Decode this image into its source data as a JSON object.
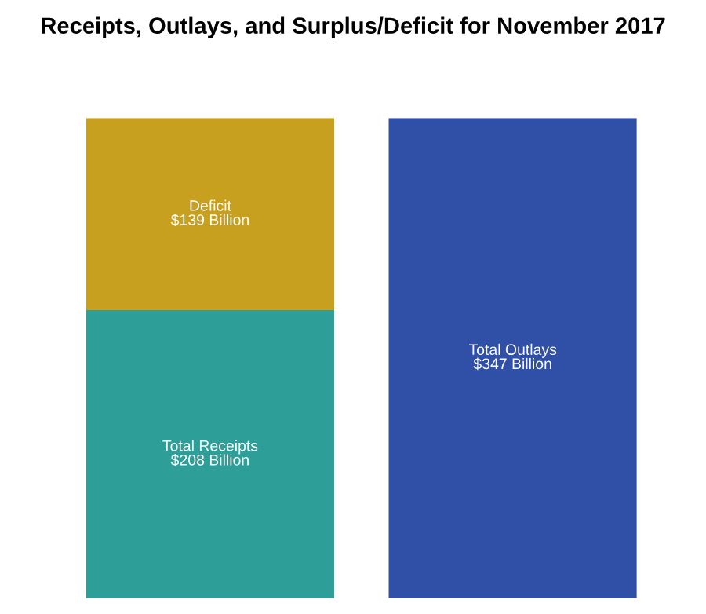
{
  "chart_data": {
    "type": "bar",
    "title": "Receipts, Outlays, and Surplus/Deficit for November 2017",
    "categories": [
      null,
      null
    ],
    "stacked": true,
    "legend": false,
    "series": [
      {
        "name": "Total Receipts",
        "color": "#2e9e98",
        "values": [
          208,
          null
        ],
        "value_labels": [
          "$208 Billion",
          null
        ]
      },
      {
        "name": "Deficit",
        "color": "#c8a020",
        "values": [
          139,
          null
        ],
        "value_labels": [
          "$139 Billion",
          null
        ]
      },
      {
        "name": "Total Outlays",
        "color": "#3050a8",
        "values": [
          null,
          347
        ],
        "value_labels": [
          null,
          "$347 Billion"
        ]
      }
    ]
  }
}
